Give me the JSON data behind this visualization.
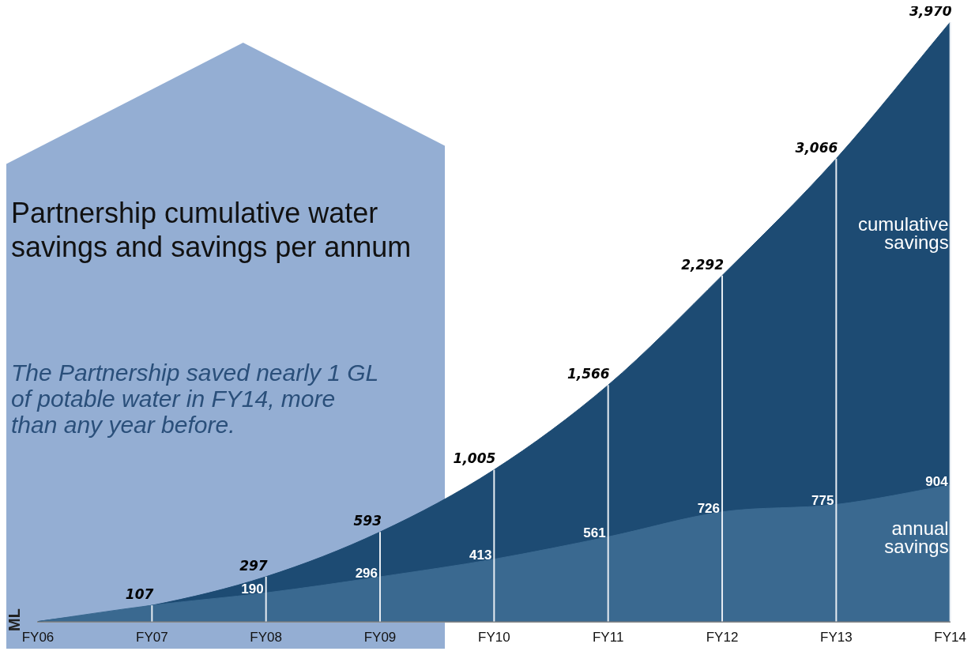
{
  "chart_data": {
    "type": "area",
    "title": "Partnership cumulative water savings and savings per annum",
    "ylabel": "ML",
    "annotations": [
      "The Partnership saved nearly 1 GL of potable water in FY14, more than any year before."
    ],
    "categories": [
      "FY06",
      "FY07",
      "FY08",
      "FY09",
      "FY10",
      "FY11",
      "FY12",
      "FY13",
      "FY14"
    ],
    "series": [
      {
        "name": "cumulative savings",
        "color": "#1d4b73",
        "values": [
          0,
          107,
          297,
          593,
          1005,
          1566,
          2292,
          3066,
          3970
        ],
        "value_labels": [
          null,
          "107",
          "297",
          "593",
          "1,005",
          "1,566",
          "2,292",
          "3,066",
          "3,970"
        ]
      },
      {
        "name": "annual savings",
        "color": "#3a6990",
        "values": [
          0,
          107,
          190,
          296,
          413,
          561,
          726,
          775,
          904
        ],
        "value_labels": [
          null,
          null,
          "190",
          "296",
          "413",
          "561",
          "726",
          "775",
          "904"
        ]
      }
    ],
    "ylim": [
      0,
      3970
    ],
    "grid": "x",
    "legend": false
  }
}
